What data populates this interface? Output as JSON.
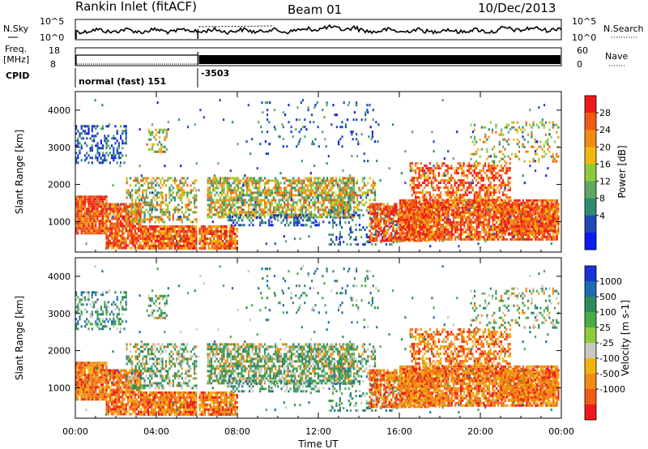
{
  "header": {
    "station_label": "Rankin Inlet (fitACF)",
    "beam_label": "Beam 01",
    "date_label": "10/Dec/2013"
  },
  "noise_panel": {
    "left_label": "N.Sky",
    "right_label": "N.Search",
    "left_ticks": [
      "10^5",
      "10^0"
    ],
    "right_ticks": [
      "10^5",
      "10^0"
    ]
  },
  "freq_panel": {
    "left_label_top": "Freq.",
    "left_label_unit": "[MHz]",
    "left_ticks": [
      "18",
      "8"
    ],
    "right_label": "Nave",
    "right_ticks": [
      "60",
      "0"
    ]
  },
  "cpid_panel": {
    "label": "CPID",
    "segments": [
      {
        "start_hour": 0.0,
        "text": "normal (fast) 151"
      },
      {
        "start_hour": 6.05,
        "text": "-3503"
      }
    ]
  },
  "chart_data": [
    {
      "type": "heatmap",
      "name": "power-panel",
      "ylabel": "Slant Range [km]",
      "ylim": [
        180,
        4500
      ],
      "xlim": [
        0,
        24
      ],
      "yticks": [
        1000,
        2000,
        3000,
        4000
      ],
      "colorbar": {
        "label": "Power [dB]",
        "ticks": [
          "4",
          "8",
          "12",
          "16",
          "20",
          "24",
          "28"
        ],
        "colors": [
          "#0a1cf0",
          "#1e48b4",
          "#2e8a70",
          "#5ea864",
          "#8ccc3c",
          "#f0b80c",
          "#f08c14",
          "#f05a14",
          "#ee1a1a"
        ]
      }
    },
    {
      "type": "heatmap",
      "name": "velocity-panel",
      "ylabel": "Slant Range [km]",
      "ylim": [
        180,
        4500
      ],
      "xlim": [
        0,
        24
      ],
      "yticks": [
        1000,
        2000,
        3000,
        4000
      ],
      "colorbar": {
        "label": "Velocity [m s-1]",
        "ticks": [
          "1000",
          "500",
          "100",
          "25",
          "-25",
          "-100",
          "-500",
          "-1000"
        ],
        "colors": [
          "#1834d8",
          "#1e6cb0",
          "#2e8a5c",
          "#4aaa48",
          "#8ccc3c",
          "#c8c8c0",
          "#f0b40c",
          "#f08c14",
          "#f05a18",
          "#ee1a1a"
        ]
      }
    }
  ],
  "x_axis": {
    "ticks": [
      "00:00",
      "04:00",
      "08:00",
      "12:00",
      "16:00",
      "20:00",
      "00:00"
    ],
    "label": "Time UT"
  }
}
